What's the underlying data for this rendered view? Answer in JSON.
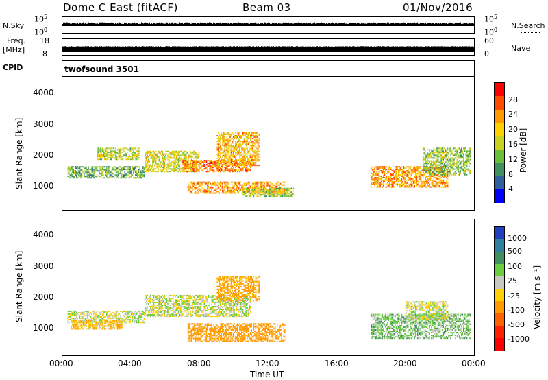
{
  "header": {
    "station": "Dome C East (fitACF)",
    "beam": "Beam 03",
    "date": "01/Nov/2016"
  },
  "sky_panel": {
    "left_label": "N.Sky",
    "right_label": "N.Search",
    "ticks_left": [
      "10^5",
      "10^0"
    ],
    "ticks_right": [
      "10^5",
      "10^0"
    ]
  },
  "freq_panel": {
    "left_label_1": "Freq.",
    "left_label_2": "[MHz]",
    "right_label": "Nave",
    "ticks_left": [
      "18",
      "8"
    ],
    "ticks_right": [
      "60",
      "0"
    ]
  },
  "cpid": {
    "label": "CPID",
    "value": "twofsound 3501"
  },
  "axes": {
    "ylabel": "Slant Range [km]",
    "xlabel": "Time UT",
    "yticks": [
      "4000",
      "3000",
      "2000",
      "1000"
    ],
    "xticks": [
      "00:00",
      "04:00",
      "08:00",
      "12:00",
      "16:00",
      "20:00",
      "00:00"
    ]
  },
  "power_bar": {
    "label": "Power [dB]",
    "ticks": [
      "28",
      "24",
      "20",
      "16",
      "12",
      "8",
      "4"
    ],
    "colors": [
      "#ff0000",
      "#ff4a00",
      "#ff9a00",
      "#ffd000",
      "#c8d020",
      "#6abf3a",
      "#3f8f5f",
      "#3060a0",
      "#0000ff"
    ]
  },
  "velocity_bar": {
    "label": "Velocity [m s⁻¹]",
    "ticks": [
      "1000",
      "500",
      "100",
      "25",
      "-25",
      "-100",
      "-500",
      "-1000"
    ],
    "colors": [
      "#2040c0",
      "#2f7fa0",
      "#3f8f5f",
      "#6acc40",
      "#c8c8c0",
      "#ffd000",
      "#ff9a00",
      "#ff6000",
      "#ff2000",
      "#ff0000"
    ]
  },
  "chart_data": [
    {
      "type": "heatmap",
      "title": "",
      "quantity": "Power [dB]",
      "xlabel": "Time UT",
      "ylabel": "Slant Range [km]",
      "xlim": [
        "00:00",
        "24:00"
      ],
      "ylim": [
        180,
        4500
      ],
      "clim": [
        0,
        30
      ],
      "regions": [
        {
          "t0": 0.3,
          "t1": 4.8,
          "r0": 1200,
          "r1": 1600,
          "value": 10
        },
        {
          "t0": 2.0,
          "t1": 4.5,
          "r0": 1800,
          "r1": 2200,
          "value": 14
        },
        {
          "t0": 4.8,
          "t1": 8.0,
          "r0": 1400,
          "r1": 2100,
          "value": 16
        },
        {
          "t0": 7.0,
          "t1": 11.0,
          "r0": 1400,
          "r1": 1800,
          "value": 24
        },
        {
          "t0": 9.0,
          "t1": 11.5,
          "r0": 1600,
          "r1": 2700,
          "value": 20
        },
        {
          "t0": 7.3,
          "t1": 13.0,
          "r0": 700,
          "r1": 1100,
          "value": 22
        },
        {
          "t0": 10.5,
          "t1": 13.5,
          "r0": 600,
          "r1": 900,
          "value": 14
        },
        {
          "t0": 18.0,
          "t1": 22.5,
          "r0": 900,
          "r1": 1600,
          "value": 22
        },
        {
          "t0": 21.0,
          "t1": 23.8,
          "r0": 1300,
          "r1": 2200,
          "value": 12
        }
      ]
    },
    {
      "type": "heatmap",
      "title": "",
      "quantity": "Velocity [m s-1]",
      "xlabel": "Time UT",
      "ylabel": "Slant Range [km]",
      "xlim": [
        "00:00",
        "24:00"
      ],
      "ylim": [
        180,
        4500
      ],
      "clim": [
        -1000,
        1000
      ],
      "regions": [
        {
          "t0": 0.3,
          "t1": 4.8,
          "r0": 1200,
          "r1": 1600,
          "value": 0
        },
        {
          "t0": 0.5,
          "t1": 3.5,
          "r0": 1000,
          "r1": 1300,
          "value": -80
        },
        {
          "t0": 4.8,
          "t1": 11.0,
          "r0": 1400,
          "r1": 2100,
          "value": 0
        },
        {
          "t0": 7.3,
          "t1": 13.0,
          "r0": 600,
          "r1": 1200,
          "value": -400
        },
        {
          "t0": 9.0,
          "t1": 11.5,
          "r0": 1900,
          "r1": 2700,
          "value": -150
        },
        {
          "t0": 18.0,
          "t1": 23.8,
          "r0": 700,
          "r1": 1500,
          "value": 60
        },
        {
          "t0": 20.0,
          "t1": 22.5,
          "r0": 1300,
          "r1": 1900,
          "value": 0
        }
      ]
    }
  ]
}
